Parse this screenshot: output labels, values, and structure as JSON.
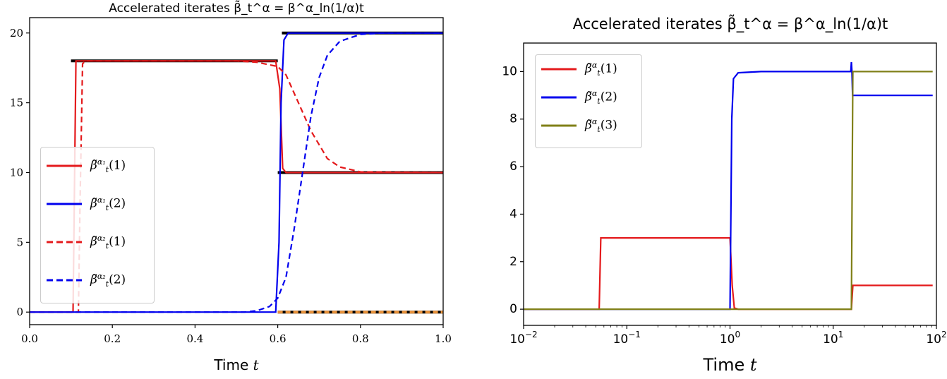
{
  "chart_data": [
    {
      "type": "line",
      "title": "Accelerated iterates β̃_t^α = β^α_ln(1/α)t",
      "title_text": "Accelerated iterates",
      "title_math_lhs": "β̃",
      "title_math_lhs_sup": "α",
      "title_math_lhs_sub": "t",
      "title_math_rhs": "β",
      "title_math_rhs_sup": "α",
      "title_math_rhs_sub": "ln(1/α)t",
      "xlabel": "Time t",
      "xlim": [
        0,
        1
      ],
      "ylim": [
        -0.9,
        21.1
      ],
      "xscale": "linear",
      "xticks": [
        0.0,
        0.2,
        0.4,
        0.6,
        0.8,
        1.0
      ],
      "xtick_labels": [
        "0.0",
        "0.2",
        "0.4",
        "0.6",
        "0.8",
        "1.0"
      ],
      "yticks": [
        0,
        5,
        10,
        15,
        20
      ],
      "ytick_labels": [
        "0",
        "5",
        "10",
        "15",
        "20"
      ],
      "grid": false,
      "legend_placement": "center-left",
      "series": [
        {
          "name": "β̃_t^α1(1)",
          "sup": "α₁",
          "idx": "(1)",
          "color": "#e41a1c",
          "dash": "solid",
          "points": [
            [
              0,
              0
            ],
            [
              0.105,
              0
            ],
            [
              0.112,
              18
            ],
            [
              0.595,
              18
            ],
            [
              0.605,
              16
            ],
            [
              0.612,
              10.3
            ],
            [
              0.62,
              10
            ],
            [
              1,
              10
            ]
          ]
        },
        {
          "name": "β̃_t^α1(2)",
          "sup": "α₁",
          "idx": "(2)",
          "color": "#0000ee",
          "dash": "solid",
          "points": [
            [
              0,
              0
            ],
            [
              0.595,
              0
            ],
            [
              0.603,
              5
            ],
            [
              0.608,
              15
            ],
            [
              0.615,
              19.5
            ],
            [
              0.625,
              20
            ],
            [
              1,
              20
            ]
          ]
        },
        {
          "name": "β̃_t^α2(1)",
          "sup": "α₂",
          "idx": "(1)",
          "color": "#e41a1c",
          "dash": "dashed",
          "points": [
            [
              0,
              0
            ],
            [
              0.118,
              0
            ],
            [
              0.122,
              8
            ],
            [
              0.128,
              17.8
            ],
            [
              0.135,
              18
            ],
            [
              0.5,
              18
            ],
            [
              0.55,
              17.9
            ],
            [
              0.6,
              17.6
            ],
            [
              0.62,
              17
            ],
            [
              0.65,
              15
            ],
            [
              0.68,
              13
            ],
            [
              0.7,
              12
            ],
            [
              0.72,
              11
            ],
            [
              0.75,
              10.4
            ],
            [
              0.8,
              10.05
            ],
            [
              1,
              10
            ]
          ]
        },
        {
          "name": "β̃_t^α2(2)",
          "sup": "α₂",
          "idx": "(2)",
          "color": "#0000ee",
          "dash": "dashed",
          "points": [
            [
              0,
              0
            ],
            [
              0.52,
              0
            ],
            [
              0.55,
              0.1
            ],
            [
              0.58,
              0.4
            ],
            [
              0.6,
              1
            ],
            [
              0.62,
              2.5
            ],
            [
              0.64,
              6
            ],
            [
              0.66,
              10
            ],
            [
              0.68,
              14
            ],
            [
              0.7,
              16.8
            ],
            [
              0.72,
              18.4
            ],
            [
              0.75,
              19.4
            ],
            [
              0.8,
              19.9
            ],
            [
              0.85,
              20
            ],
            [
              1,
              20
            ]
          ]
        }
      ],
      "reference_segments": [
        {
          "color": "#000000",
          "points": [
            [
              0.1,
              18
            ],
            [
              0.6,
              18
            ]
          ]
        },
        {
          "color": "#000000",
          "points": [
            [
              0.61,
              20
            ],
            [
              1,
              20
            ]
          ]
        },
        {
          "color": "#000000",
          "points": [
            [
              0.6,
              10
            ],
            [
              1,
              10
            ]
          ]
        },
        {
          "color": "#000000",
          "points": [
            [
              0.6,
              0
            ],
            [
              1,
              0
            ]
          ]
        },
        {
          "color": "#e8913a",
          "dash": "dashed",
          "points": [
            [
              0.6,
              0
            ],
            [
              1,
              0
            ]
          ]
        }
      ]
    },
    {
      "type": "line",
      "title": "Accelerated iterates β̃_t^α = β^α_ln(1/α)t",
      "title_text": "Accelerated iterates",
      "title_math_lhs": "β̃",
      "title_math_lhs_sup": "α",
      "title_math_lhs_sub": "t",
      "title_math_rhs": "β",
      "title_math_rhs_sup": "α",
      "title_math_rhs_sub": "ln(1/α)t",
      "xlabel": "Time t",
      "xlim": [
        0.01,
        100
      ],
      "ylim": [
        -0.68,
        11.2
      ],
      "xscale": "log",
      "xticks": [
        0.01,
        0.1,
        1,
        10,
        100
      ],
      "xtick_labels": [
        "10",
        "10",
        "10",
        "10",
        "10"
      ],
      "xtick_exponents": [
        "−2",
        "−1",
        "0",
        "1",
        "2"
      ],
      "yticks": [
        0,
        2,
        4,
        6,
        8,
        10
      ],
      "ytick_labels": [
        "0",
        "2",
        "4",
        "6",
        "8",
        "10"
      ],
      "grid": false,
      "legend_placement": "upper-left",
      "series": [
        {
          "name": "β̃_t^α(1)",
          "sup": "α",
          "idx": "(1)",
          "color": "#e41a1c",
          "dash": "solid",
          "points": [
            [
              0.01,
              0
            ],
            [
              0.054,
              0
            ],
            [
              0.056,
              3
            ],
            [
              1.0,
              3
            ],
            [
              1.05,
              1
            ],
            [
              1.1,
              0.05
            ],
            [
              1.2,
              0
            ],
            [
              15,
              0
            ],
            [
              15.5,
              1
            ],
            [
              92,
              1
            ]
          ]
        },
        {
          "name": "β̃_t^α(2)",
          "sup": "α",
          "idx": "(2)",
          "color": "#0000ee",
          "dash": "solid",
          "points": [
            [
              0.01,
              0
            ],
            [
              1.0,
              0
            ],
            [
              1.04,
              8
            ],
            [
              1.08,
              9.7
            ],
            [
              1.2,
              9.95
            ],
            [
              2,
              10
            ],
            [
              14.8,
              10
            ],
            [
              15,
              10.4
            ],
            [
              15.2,
              10
            ],
            [
              15.4,
              9
            ],
            [
              92,
              9
            ]
          ]
        },
        {
          "name": "β̃_t^α(3)",
          "sup": "α",
          "idx": "(3)",
          "color": "#808018",
          "dash": "solid",
          "points": [
            [
              0.01,
              0
            ],
            [
              15,
              0
            ],
            [
              15.5,
              10
            ],
            [
              92,
              10
            ]
          ]
        }
      ]
    }
  ]
}
